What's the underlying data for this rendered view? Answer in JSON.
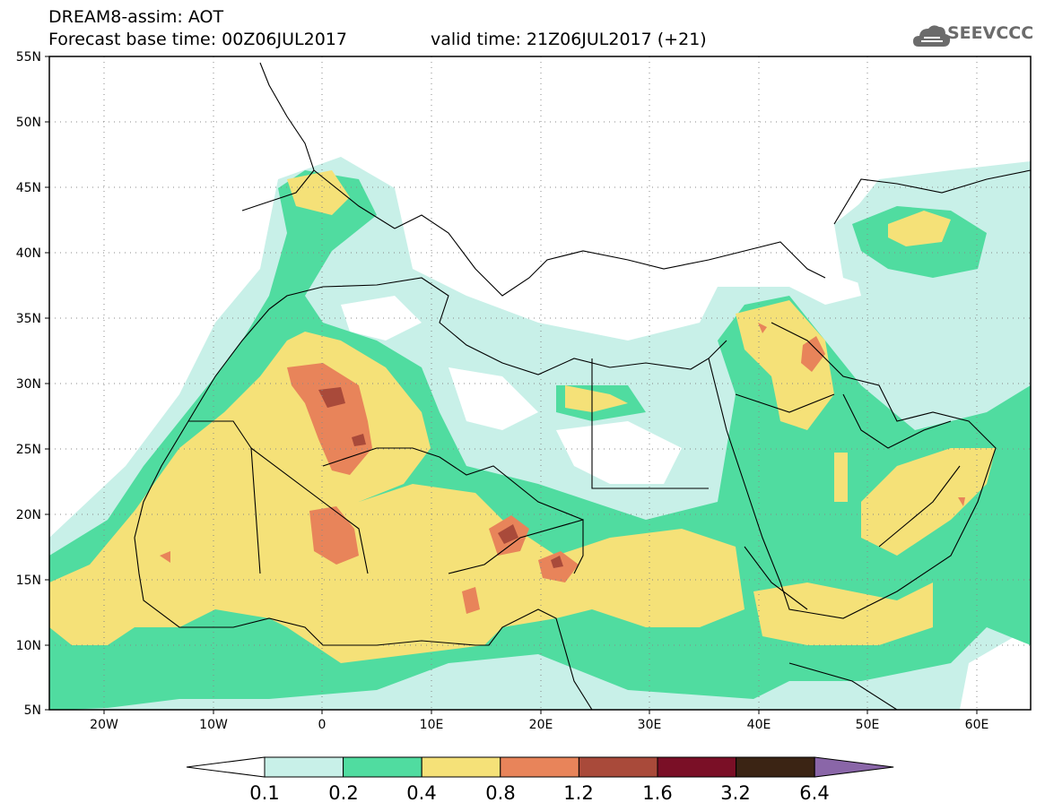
{
  "header": {
    "title": "DREAM8-assim: AOT",
    "base_time": "Forecast base time: 00Z06JUL2017",
    "valid_time": "valid time: 21Z06JUL2017 (+21)"
  },
  "logo": {
    "text": "SEEVCCC",
    "icon": "cloud-logo-icon"
  },
  "map": {
    "projection": "lat-lon",
    "lon_range": [
      -25,
      65
    ],
    "lat_range": [
      5,
      55
    ],
    "lat_ticks": [
      "55N",
      "50N",
      "45N",
      "40N",
      "35N",
      "30N",
      "25N",
      "20N",
      "15N",
      "10N",
      "5N"
    ],
    "lon_ticks": [
      "20W",
      "10W",
      "0",
      "10E",
      "20E",
      "30E",
      "40E",
      "50E",
      "60E"
    ],
    "grid": "dotted"
  },
  "colorbar": {
    "labels": [
      "0.1",
      "0.2",
      "0.4",
      "0.8",
      "1.2",
      "1.6",
      "3.2",
      "6.4"
    ],
    "colors": [
      "#ffffff",
      "#c8f0e8",
      "#50dca0",
      "#f5e178",
      "#e8845a",
      "#a94a3a",
      "#7a0f26",
      "#3b2414",
      "#8a66a8"
    ]
  }
}
